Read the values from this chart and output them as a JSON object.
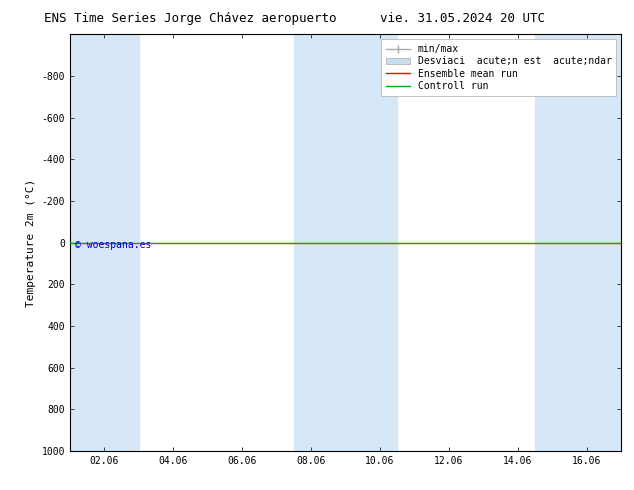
{
  "title_left": "ENS Time Series Jorge Chávez aeropuerto",
  "title_right": "vie. 31.05.2024 20 UTC",
  "ylabel": "Temperature 2m (°C)",
  "watermark": "© woespana.es",
  "ylim_bottom": 1000,
  "ylim_top": -1000,
  "yticks": [
    -800,
    -600,
    -400,
    -200,
    0,
    200,
    400,
    600,
    800,
    1000
  ],
  "x_labels": [
    "02.06",
    "04.06",
    "06.06",
    "08.06",
    "10.06",
    "12.06",
    "14.06",
    "16.06"
  ],
  "x_values": [
    2,
    4,
    6,
    8,
    10,
    12,
    14,
    16
  ],
  "x_min": 1,
  "x_max": 17,
  "bg_color": "#ffffff",
  "plot_bg_color": "#ffffff",
  "shaded_bands": [
    {
      "x_start": 1.0,
      "x_end": 3.0,
      "color": "#d6e8f7"
    },
    {
      "x_start": 7.5,
      "x_end": 10.5,
      "color": "#d6e8f7"
    },
    {
      "x_start": 14.5,
      "x_end": 17.0,
      "color": "#d6e8f7"
    }
  ],
  "green_line_y": 0,
  "green_line_color": "#00aa00",
  "red_line_y": 0,
  "red_line_color": "#ff0000",
  "minmax_color": "#aaaaaa",
  "stddev_color": "#c8dff0",
  "legend_label_minmax": "min/max",
  "legend_label_std": "Desviaci  acute;n est  acute;ndar",
  "legend_label_ensemble": "Ensemble mean run",
  "legend_label_control": "Controll run",
  "tick_font_size": 7,
  "ylabel_font_size": 8,
  "title_font_size": 9,
  "legend_font_size": 7,
  "watermark_font_size": 7,
  "watermark_color": "#0000cc"
}
